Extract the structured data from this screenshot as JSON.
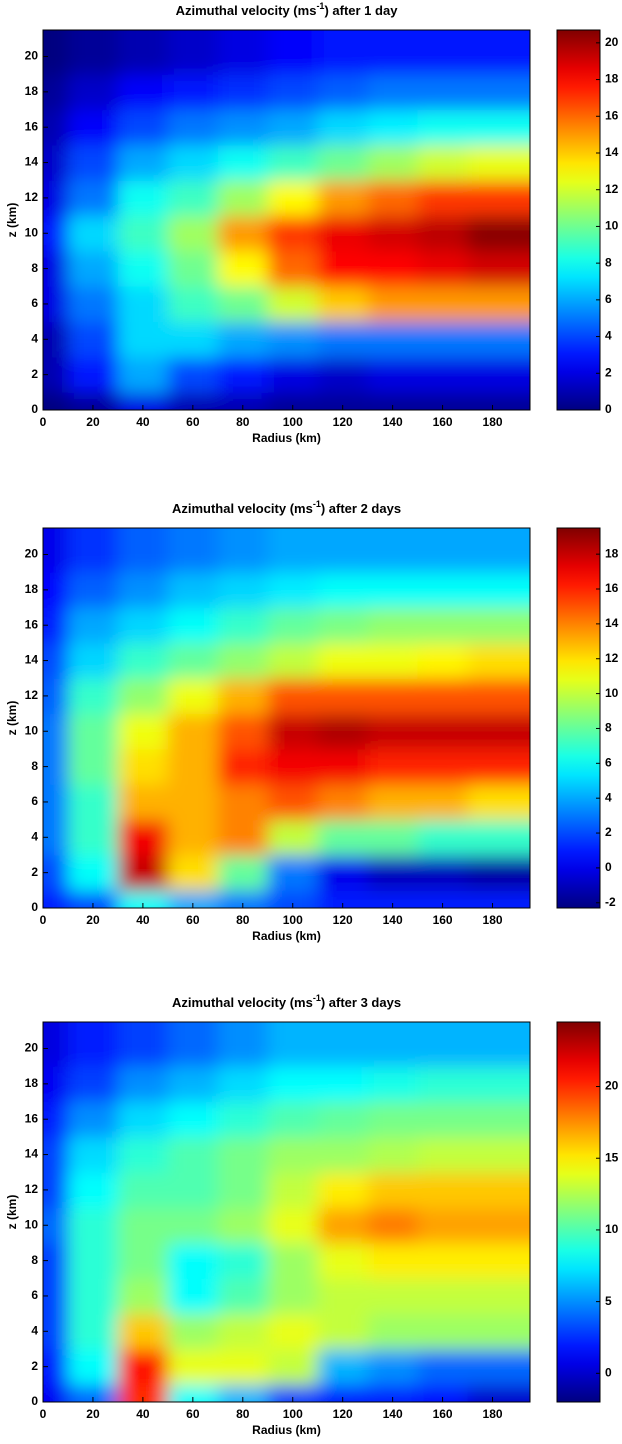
{
  "chart_data": [
    {
      "type": "contour",
      "title": "Azimuthal velocity (ms",
      "title_superscript": "-1",
      "title_suffix": ") after 1 day",
      "x_label": "Radius (km)",
      "y_label": "z (km)",
      "colormap": "jet",
      "x": [
        0,
        20,
        40,
        60,
        80,
        100,
        120,
        140,
        160,
        180
      ],
      "y": [
        0,
        2,
        4,
        6,
        8,
        10,
        12,
        14,
        16,
        18,
        20
      ],
      "z": [
        [
          0,
          0.5,
          2,
          1,
          1,
          0.5,
          0.5,
          0.5,
          0.5,
          0.5
        ],
        [
          1,
          3,
          6,
          4,
          3,
          2,
          1.5,
          2,
          2,
          2
        ],
        [
          1,
          4,
          7,
          7,
          6,
          5.5,
          5,
          5,
          5,
          5
        ],
        [
          2,
          5,
          7,
          9,
          10,
          12,
          14,
          15,
          15,
          15
        ],
        [
          2,
          6,
          8,
          10,
          13,
          16,
          18,
          18,
          18.5,
          19
        ],
        [
          3,
          7,
          9,
          11,
          15,
          17,
          18.5,
          19,
          19.5,
          20.5
        ],
        [
          2,
          5,
          8,
          9,
          11,
          13,
          15,
          16,
          17,
          17
        ],
        [
          1.5,
          4,
          6,
          7,
          8,
          9,
          10,
          11,
          12,
          12.5
        ],
        [
          1,
          2.5,
          4,
          5,
          5.5,
          6,
          7,
          7.5,
          8,
          8
        ],
        [
          0.5,
          1.5,
          2.5,
          3,
          3.5,
          4,
          4.5,
          5,
          5,
          5
        ],
        [
          0,
          0.5,
          1,
          1.5,
          2,
          2.5,
          3,
          3,
          3,
          3
        ]
      ],
      "xlim": [
        0,
        195
      ],
      "ylim": [
        0,
        21.5
      ],
      "xticks": [
        0,
        20,
        40,
        60,
        80,
        100,
        120,
        140,
        160,
        180
      ],
      "yticks": [
        0,
        2,
        4,
        6,
        8,
        10,
        12,
        14,
        16,
        18,
        20
      ],
      "clim": [
        0,
        20.7
      ],
      "cticks": [
        0,
        2,
        4,
        6,
        8,
        10,
        12,
        14,
        16,
        18,
        20
      ]
    },
    {
      "type": "contour",
      "title": "Azimuthal velocity (ms",
      "title_superscript": "-1",
      "title_suffix": ") after 2 days",
      "x_label": "Radius (km)",
      "y_label": "z (km)",
      "colormap": "jet",
      "x": [
        0,
        20,
        40,
        60,
        80,
        100,
        120,
        140,
        160,
        180
      ],
      "y": [
        0,
        2,
        4,
        6,
        8,
        10,
        12,
        14,
        16,
        18,
        20
      ],
      "z": [
        [
          1,
          2,
          6,
          4,
          3,
          2,
          1,
          1,
          1,
          1
        ],
        [
          2,
          6,
          18,
          12,
          8,
          3,
          0,
          -1,
          -1,
          -1.5
        ],
        [
          3,
          7,
          17,
          13,
          14,
          10,
          8,
          8,
          7,
          7
        ],
        [
          3,
          7,
          13,
          13,
          14,
          15,
          14,
          13,
          13,
          12
        ],
        [
          3,
          8,
          12,
          13,
          16,
          17,
          17,
          16,
          16,
          16
        ],
        [
          3,
          8,
          11,
          13,
          15,
          18,
          18.5,
          18,
          18,
          18
        ],
        [
          2.5,
          7,
          9,
          11,
          13,
          15,
          15,
          15,
          15,
          15
        ],
        [
          2,
          5,
          7,
          8,
          9,
          10,
          11,
          11,
          11.5,
          12
        ],
        [
          1,
          4,
          5,
          6,
          7,
          8,
          8.5,
          9,
          9,
          9
        ],
        [
          0.5,
          2.5,
          3.5,
          4.5,
          5,
          5.5,
          6,
          6,
          6,
          6
        ],
        [
          0,
          1.5,
          2.5,
          3,
          3.5,
          4,
          4,
          4,
          4,
          4
        ]
      ],
      "xlim": [
        0,
        195
      ],
      "ylim": [
        0,
        21.5
      ],
      "xticks": [
        0,
        20,
        40,
        60,
        80,
        100,
        120,
        140,
        160,
        180
      ],
      "yticks": [
        0,
        2,
        4,
        6,
        8,
        10,
        12,
        14,
        16,
        18,
        20
      ],
      "clim": [
        -2.3,
        19.5
      ],
      "cticks": [
        -2,
        0,
        2,
        4,
        6,
        8,
        10,
        12,
        14,
        16,
        18
      ]
    },
    {
      "type": "contour",
      "title": "Azimuthal velocity (ms",
      "title_superscript": "-1",
      "title_suffix": ") after 3 days",
      "x_label": "Radius (km)",
      "y_label": "z (km)",
      "colormap": "jet",
      "x": [
        0,
        20,
        40,
        60,
        80,
        100,
        120,
        140,
        160,
        180
      ],
      "y": [
        0,
        2,
        4,
        6,
        8,
        10,
        12,
        14,
        16,
        18,
        20
      ],
      "z": [
        [
          1,
          4,
          20,
          8,
          6,
          3,
          2,
          2,
          1.5,
          0
        ],
        [
          2,
          8,
          21,
          14,
          14,
          13,
          6,
          5,
          4,
          4
        ],
        [
          3,
          9,
          16,
          12,
          13,
          14,
          13,
          12,
          12,
          12
        ],
        [
          3,
          9,
          12,
          8,
          10,
          12,
          13,
          13,
          13,
          13
        ],
        [
          3,
          9,
          11,
          8,
          9,
          12,
          14,
          15,
          15,
          15
        ],
        [
          4,
          9,
          11,
          11,
          12,
          14,
          17,
          18,
          17,
          17
        ],
        [
          3,
          8,
          10,
          10,
          11,
          13,
          15,
          16,
          16,
          16
        ],
        [
          3,
          7,
          9,
          10,
          11,
          12,
          12,
          12.5,
          13,
          13
        ],
        [
          2,
          5,
          7,
          8,
          9,
          10,
          10.5,
          11,
          11,
          11
        ],
        [
          1,
          3,
          5,
          6,
          7,
          8,
          8,
          8.5,
          9,
          9
        ],
        [
          0.5,
          2,
          3,
          4,
          5,
          6,
          6,
          6,
          6,
          6
        ]
      ],
      "xlim": [
        0,
        195
      ],
      "ylim": [
        0,
        21.5
      ],
      "xticks": [
        0,
        20,
        40,
        60,
        80,
        100,
        120,
        140,
        160,
        180
      ],
      "yticks": [
        0,
        2,
        4,
        6,
        8,
        10,
        12,
        14,
        16,
        18,
        20
      ],
      "clim": [
        -2,
        24.5
      ],
      "cticks": [
        0,
        5,
        10,
        15,
        20
      ]
    }
  ]
}
